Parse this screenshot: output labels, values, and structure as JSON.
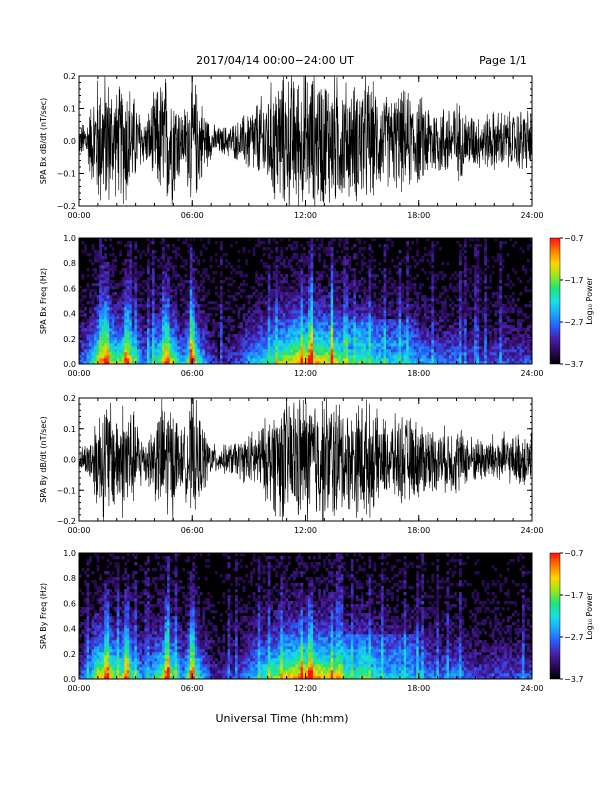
{
  "header": {
    "title": "2017/04/14   00:00−24:00 UT",
    "page": "Page 1/1"
  },
  "footer": {
    "xlabel": "Universal Time (hh:mm)"
  },
  "colors": {
    "trace": "#000000",
    "colormap": [
      "#000000",
      "#2a0a55",
      "#4b1fa8",
      "#2a5cff",
      "#19a8ff",
      "#19e0e0",
      "#1de37a",
      "#9ae61a",
      "#ffd400",
      "#ff7a00",
      "#ff1010"
    ]
  },
  "chart_data": [
    {
      "type": "line",
      "ylabel": "SPA Bx dB/dt (nT/sec)",
      "ylim": [
        -0.2,
        0.2
      ],
      "yticks": [
        "0.2",
        "0.1",
        "0.0",
        "−0.1",
        "−0.2"
      ],
      "xticks": [
        "00:00",
        "06:00",
        "12:00",
        "18:00",
        "24:00"
      ],
      "xlim_hours": [
        0,
        24
      ],
      "envelope": {
        "hours": [
          0,
          0.5,
          1,
          1.5,
          2,
          2.5,
          3,
          3.5,
          4,
          4.5,
          5,
          5.5,
          6,
          6.5,
          7,
          7.5,
          8,
          8.5,
          9,
          9.5,
          10,
          10.5,
          11,
          11.5,
          12,
          12.5,
          13,
          13.5,
          14,
          14.5,
          15,
          15.5,
          16,
          16.5,
          17,
          17.5,
          18,
          18.5,
          19,
          19.5,
          20,
          20.5,
          21,
          21.5,
          22,
          22.5,
          23,
          23.5,
          24
        ],
        "amplitude": [
          0.04,
          0.08,
          0.2,
          0.2,
          0.15,
          0.2,
          0.12,
          0.06,
          0.14,
          0.2,
          0.18,
          0.08,
          0.2,
          0.12,
          0.05,
          0.04,
          0.05,
          0.06,
          0.1,
          0.12,
          0.15,
          0.2,
          0.2,
          0.2,
          0.2,
          0.2,
          0.2,
          0.2,
          0.18,
          0.16,
          0.2,
          0.17,
          0.14,
          0.13,
          0.15,
          0.14,
          0.13,
          0.12,
          0.1,
          0.11,
          0.12,
          0.09,
          0.08,
          0.08,
          0.09,
          0.09,
          0.08,
          0.1,
          0.09
        ]
      }
    },
    {
      "type": "heatmap",
      "ylabel": "SPA Bx Freq (Hz)",
      "ylim": [
        0,
        1
      ],
      "yticks": [
        "1.0",
        "0.8",
        "0.6",
        "0.4",
        "0.2",
        "0.0"
      ],
      "xticks": [
        "00:00",
        "06:00",
        "12:00",
        "18:00",
        "24:00"
      ],
      "xlim_hours": [
        0,
        24
      ],
      "colorbar": {
        "label": "Log₁₀ Power",
        "ticks": [
          "−0.7",
          "−1.7",
          "−2.7",
          "−3.7"
        ],
        "range": [
          -3.7,
          -0.7
        ]
      },
      "activity": {
        "hours": [
          0,
          0.5,
          1,
          1.5,
          2,
          2.5,
          3,
          3.5,
          4,
          4.5,
          5,
          5.5,
          6,
          6.5,
          7,
          7.5,
          8,
          8.5,
          9,
          9.5,
          10,
          10.5,
          11,
          11.5,
          12,
          12.5,
          13,
          13.5,
          14,
          14.5,
          15,
          15.5,
          16,
          16.5,
          17,
          17.5,
          18,
          18.5,
          19,
          19.5,
          20,
          20.5,
          21,
          21.5,
          22,
          22.5,
          23,
          23.5,
          24
        ],
        "level": [
          0.3,
          0.45,
          0.85,
          0.9,
          0.7,
          0.85,
          0.6,
          0.35,
          0.6,
          0.8,
          0.75,
          0.4,
          0.9,
          0.5,
          0.25,
          0.2,
          0.25,
          0.3,
          0.45,
          0.55,
          0.6,
          0.75,
          0.85,
          0.95,
          0.95,
          0.9,
          0.9,
          0.85,
          0.7,
          0.6,
          0.75,
          0.6,
          0.55,
          0.5,
          0.55,
          0.5,
          0.45,
          0.4,
          0.35,
          0.35,
          0.4,
          0.3,
          0.3,
          0.25,
          0.3,
          0.3,
          0.28,
          0.3,
          0.3
        ]
      },
      "bright_hours": [
        1.5,
        2.5,
        4.7,
        6.0,
        11.8,
        12.3,
        13.4
      ]
    },
    {
      "type": "line",
      "ylabel": "SPA By dB/dt (nT/sec)",
      "ylim": [
        -0.2,
        0.2
      ],
      "yticks": [
        "0.2",
        "0.1",
        "0.0",
        "−0.1",
        "−0.2"
      ],
      "xticks": [
        "00:00",
        "06:00",
        "12:00",
        "18:00",
        "24:00"
      ],
      "xlim_hours": [
        0,
        24
      ],
      "envelope": {
        "hours": [
          0,
          0.5,
          1,
          1.5,
          2,
          2.5,
          3,
          3.5,
          4,
          4.5,
          5,
          5.5,
          6,
          6.5,
          7,
          7.5,
          8,
          8.5,
          9,
          9.5,
          10,
          10.5,
          11,
          11.5,
          12,
          12.5,
          13,
          13.5,
          14,
          14.5,
          15,
          15.5,
          16,
          16.5,
          17,
          17.5,
          18,
          18.5,
          19,
          19.5,
          20,
          20.5,
          21,
          21.5,
          22,
          22.5,
          23,
          23.5,
          24
        ],
        "amplitude": [
          0.03,
          0.06,
          0.16,
          0.2,
          0.15,
          0.2,
          0.13,
          0.07,
          0.12,
          0.2,
          0.17,
          0.08,
          0.2,
          0.12,
          0.05,
          0.04,
          0.05,
          0.06,
          0.08,
          0.1,
          0.13,
          0.18,
          0.2,
          0.2,
          0.2,
          0.2,
          0.2,
          0.2,
          0.17,
          0.15,
          0.2,
          0.16,
          0.13,
          0.12,
          0.14,
          0.13,
          0.12,
          0.11,
          0.09,
          0.1,
          0.11,
          0.08,
          0.07,
          0.07,
          0.08,
          0.08,
          0.07,
          0.09,
          0.08
        ]
      }
    },
    {
      "type": "heatmap",
      "ylabel": "SPA By Freq (Hz)",
      "ylim": [
        0,
        1
      ],
      "yticks": [
        "1.0",
        "0.8",
        "0.6",
        "0.4",
        "0.2",
        "0.0"
      ],
      "xticks": [
        "00:00",
        "06:00",
        "12:00",
        "18:00",
        "24:00"
      ],
      "xlim_hours": [
        0,
        24
      ],
      "colorbar": {
        "label": "Log₁₀ Power",
        "ticks": [
          "−0.7",
          "−1.7",
          "−2.7",
          "−3.7"
        ],
        "range": [
          -3.7,
          -0.7
        ]
      },
      "activity": {
        "hours": [
          0,
          0.5,
          1,
          1.5,
          2,
          2.5,
          3,
          3.5,
          4,
          4.5,
          5,
          5.5,
          6,
          6.5,
          7,
          7.5,
          8,
          8.5,
          9,
          9.5,
          10,
          10.5,
          11,
          11.5,
          12,
          12.5,
          13,
          13.5,
          14,
          14.5,
          15,
          15.5,
          16,
          16.5,
          17,
          17.5,
          18,
          18.5,
          19,
          19.5,
          20,
          20.5,
          21,
          21.5,
          22,
          22.5,
          23,
          23.5,
          24
        ],
        "level": [
          0.3,
          0.45,
          0.85,
          0.9,
          0.7,
          0.85,
          0.6,
          0.35,
          0.6,
          0.8,
          0.75,
          0.4,
          0.9,
          0.5,
          0.25,
          0.2,
          0.25,
          0.3,
          0.45,
          0.55,
          0.65,
          0.8,
          0.9,
          0.95,
          1.0,
          0.95,
          0.9,
          0.85,
          0.7,
          0.6,
          0.75,
          0.6,
          0.55,
          0.5,
          0.55,
          0.5,
          0.45,
          0.4,
          0.35,
          0.35,
          0.4,
          0.3,
          0.3,
          0.25,
          0.3,
          0.3,
          0.28,
          0.3,
          0.3
        ]
      },
      "bright_hours": [
        1.5,
        2.5,
        4.7,
        6.0,
        11.8,
        12.3,
        13.4
      ]
    }
  ]
}
